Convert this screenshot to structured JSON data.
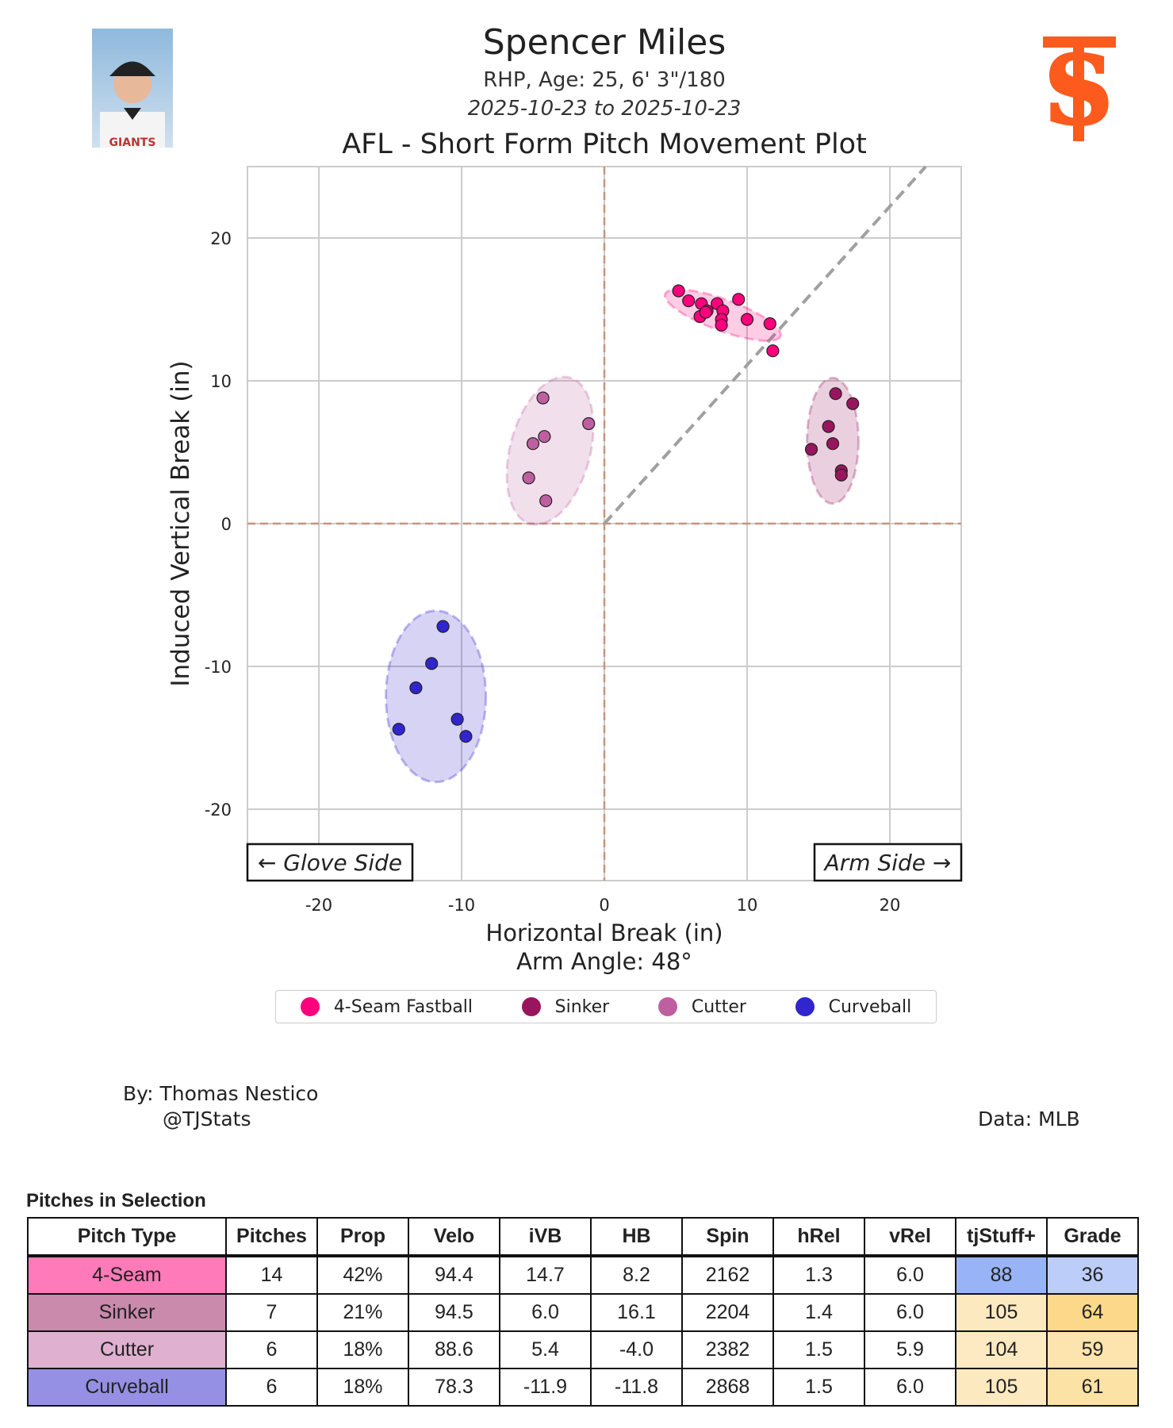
{
  "header": {
    "name": "Spencer Miles",
    "bio": "RHP, Age: 25, 6' 3\"/180",
    "dates": "2025-10-23 to 2025-10-23",
    "logo_text": "SF",
    "headshot_text": "GIANTS"
  },
  "chart_data": {
    "type": "scatter",
    "title": "AFL - Short Form Pitch Movement Plot",
    "xlabel": "Horizontal Break (in)",
    "ylabel": "Induced Vertical Break (in)",
    "xlim": [
      -25,
      25
    ],
    "ylim": [
      -25,
      25
    ],
    "xticks": [
      -20,
      -10,
      0,
      10,
      20
    ],
    "yticks": [
      20,
      10,
      0,
      -10,
      -20
    ],
    "grid": true,
    "arm_angle_deg": 48,
    "arm_angle_label": "Arm Angle: 48°",
    "annotations": [
      "← Glove Side",
      "Arm Side →"
    ],
    "legend_placement": "bottom",
    "series": [
      {
        "name": "4-Seam Fastball",
        "color": "#ff007d",
        "ellipse": {
          "cx": 8.3,
          "cy": 14.6,
          "rx": 4.3,
          "ry": 1.1,
          "angle": 20
        },
        "points": [
          [
            5.2,
            16.3
          ],
          [
            5.9,
            15.6
          ],
          [
            6.8,
            15.4
          ],
          [
            7.2,
            14.9
          ],
          [
            7.9,
            15.4
          ],
          [
            8.3,
            14.9
          ],
          [
            9.4,
            15.7
          ],
          [
            6.7,
            14.5
          ],
          [
            8.2,
            14.3
          ],
          [
            8.2,
            13.9
          ],
          [
            10.0,
            14.3
          ],
          [
            11.6,
            14.0
          ],
          [
            11.8,
            12.1
          ],
          [
            7.1,
            14.8
          ]
        ]
      },
      {
        "name": "Sinker",
        "color": "#98165d",
        "ellipse": {
          "cx": 16.0,
          "cy": 5.8,
          "rx": 1.8,
          "ry": 4.4,
          "angle": 0
        },
        "points": [
          [
            16.2,
            9.1
          ],
          [
            17.4,
            8.4
          ],
          [
            15.7,
            6.8
          ],
          [
            16.0,
            5.6
          ],
          [
            14.5,
            5.2
          ],
          [
            16.6,
            3.7
          ],
          [
            16.6,
            3.4
          ]
        ]
      },
      {
        "name": "Cutter",
        "color": "#be5fa0",
        "ellipse": {
          "cx": -3.8,
          "cy": 5.1,
          "rx": 2.8,
          "ry": 5.3,
          "angle": 15
        },
        "points": [
          [
            -4.3,
            8.8
          ],
          [
            -1.1,
            7.0
          ],
          [
            -4.2,
            6.1
          ],
          [
            -5.0,
            5.6
          ],
          [
            -5.3,
            3.2
          ],
          [
            -4.1,
            1.6
          ]
        ]
      },
      {
        "name": "Curveball",
        "color": "#3025ce",
        "ellipse": {
          "cx": -11.8,
          "cy": -12.1,
          "rx": 3.5,
          "ry": 6.0,
          "angle": 0
        },
        "points": [
          [
            -11.3,
            -7.2
          ],
          [
            -12.1,
            -9.8
          ],
          [
            -13.2,
            -11.5
          ],
          [
            -10.3,
            -13.7
          ],
          [
            -14.4,
            -14.4
          ],
          [
            -9.7,
            -14.9
          ]
        ]
      }
    ]
  },
  "footer": {
    "by": "By: Thomas Nestico",
    "handle": "@TJStats",
    "source": "Data: MLB"
  },
  "table": {
    "title": "Pitches in Selection",
    "headers": [
      "Pitch Type",
      "Pitches",
      "Prop",
      "Velo",
      "iVB",
      "HB",
      "Spin",
      "hRel",
      "vRel",
      "tjStuff+",
      "Grade"
    ],
    "rows": [
      {
        "cells": [
          "4-Seam",
          "14",
          "42%",
          "94.4",
          "14.7",
          "8.2",
          "2162",
          "1.3",
          "6.0",
          "88",
          "36"
        ],
        "colors": [
          "#ff7ab8",
          "#98b4f7",
          "#bccdfa"
        ]
      },
      {
        "cells": [
          "Sinker",
          "7",
          "21%",
          "94.5",
          "6.0",
          "16.1",
          "2204",
          "1.4",
          "6.0",
          "105",
          "64"
        ],
        "colors": [
          "#c98aac",
          "#fde9c0",
          "#fcd98a"
        ]
      },
      {
        "cells": [
          "Cutter",
          "6",
          "18%",
          "88.6",
          "5.4",
          "-4.0",
          "2382",
          "1.5",
          "5.9",
          "104",
          "59"
        ],
        "colors": [
          "#dfb0d0",
          "#fde9c2",
          "#fde3ad"
        ]
      },
      {
        "cells": [
          "Curveball",
          "6",
          "18%",
          "78.3",
          "-11.9",
          "-11.8",
          "2868",
          "1.5",
          "6.0",
          "105",
          "61"
        ],
        "colors": [
          "#9690e4",
          "#fde9c0",
          "#fde2a5"
        ]
      }
    ]
  }
}
